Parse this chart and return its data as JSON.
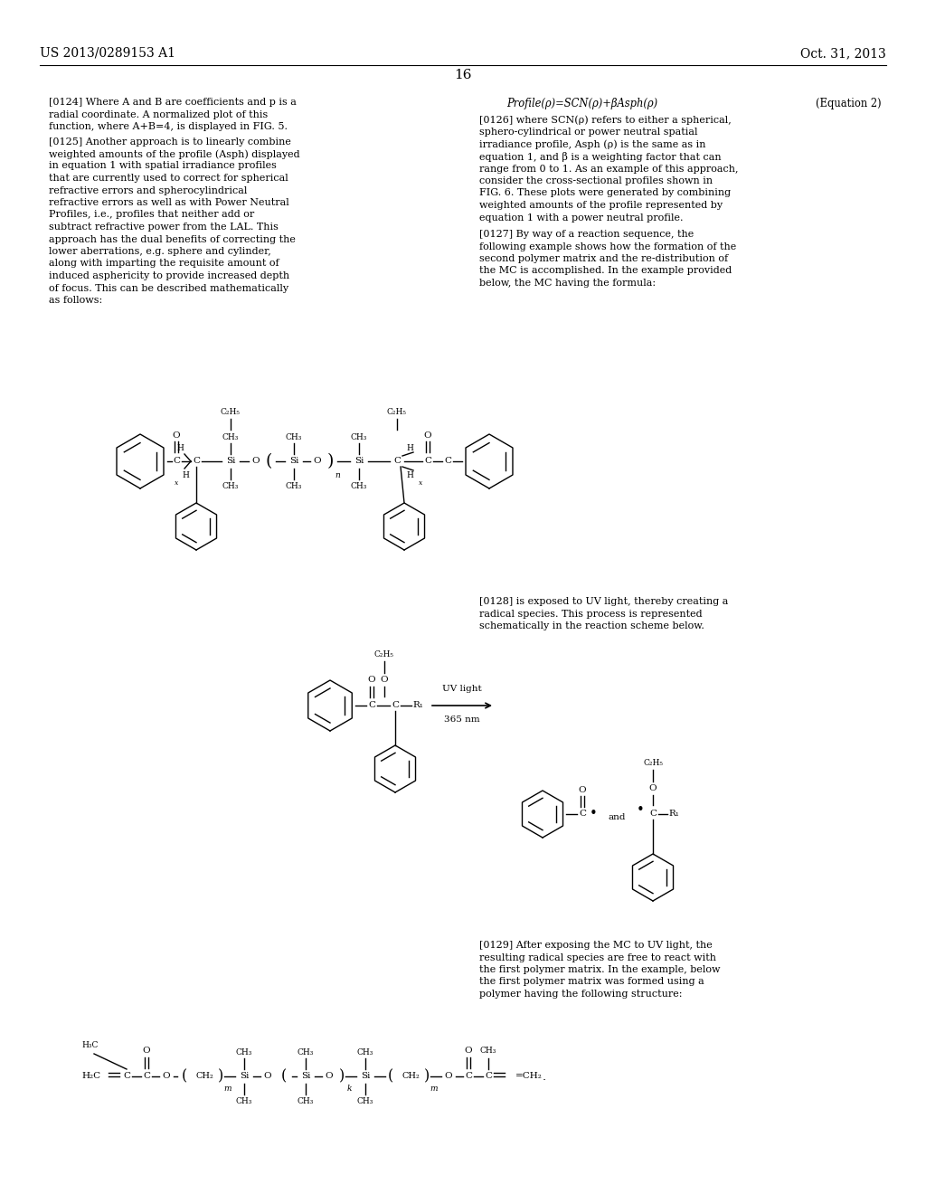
{
  "page_header_left": "US 2013/0289153 A1",
  "page_header_right": "Oct. 31, 2013",
  "page_number": "16",
  "background_color": "#ffffff",
  "figsize": [
    10.24,
    13.2
  ],
  "dpi": 100,
  "para_0124": "[0124]   Where A and B are coefficients and p is a radial coordinate. A normalized plot of this function, where A+B=4, is displayed in FIG. 5.",
  "para_0125": "[0125]   Another approach is to linearly combine weighted amounts of the profile (Asph) displayed in equation 1 with spatial irradiance profiles that are currently used to correct for spherical refractive errors and spherocylindrical refractive errors as well as with Power Neutral Profiles, i.e., profiles that neither add or subtract refractive power from the LAL. This approach has the dual benefits of correcting the lower aberrations, e.g. sphere and cylinder, along with imparting the requisite amount of induced asphericity to provide increased depth of focus. This can be described mathematically as follows:",
  "eq2_formula": "Profile(ρ)=SCN(ρ)+βAsph(ρ)",
  "eq2_label": "(Equation 2)",
  "para_0126": "[0126]   where SCN(ρ) refers to either a spherical, sphero-cylindrical or power neutral spatial irradiance profile, Asph (ρ) is the same as in equation 1, and β is a weighting factor that can range from 0 to 1. As an example of this approach, consider the cross-sectional profiles shown in FIG. 6. These plots were generated by combining weighted amounts of the profile represented by equation 1 with a power neutral profile.",
  "para_0127": "[0127]   By way of a reaction sequence, the following example shows how the formation of the second polymer matrix and the re-distribution of the MC is accomplished. In the example provided below, the MC having the formula:",
  "para_0128": "[0128]   is exposed to UV light, thereby creating a radical species. This process is represented schematically in the reaction scheme below.",
  "para_0129": "[0129]   After exposing the MC to UV light, the resulting radical species are free to react with the first polymer matrix. In the example, below the first polymer matrix was formed using a polymer having the following structure:"
}
